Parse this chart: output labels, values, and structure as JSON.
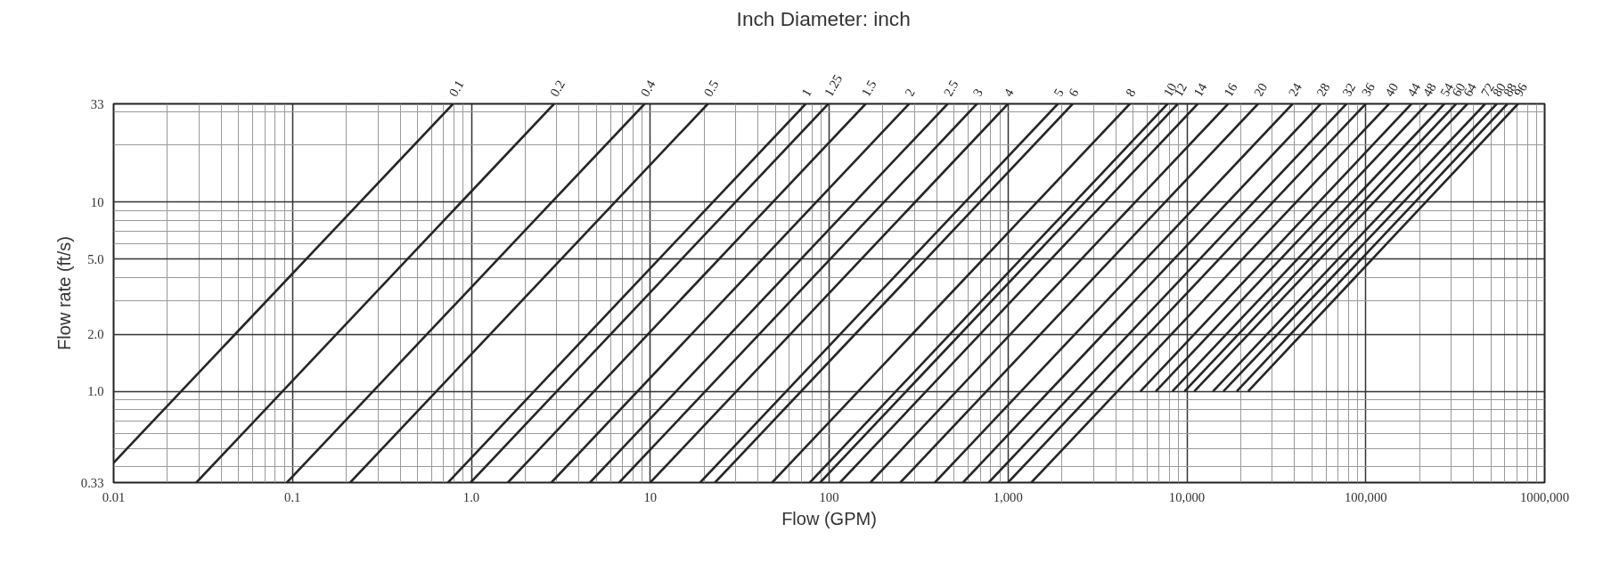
{
  "chart_data": {
    "type": "line",
    "title": "Inch   Diameter: inch",
    "xlabel": "Flow (GPM)",
    "ylabel": "Flow rate (ft/s)",
    "log": "xy",
    "grid": true,
    "xlim": [
      0.01,
      1000000
    ],
    "ylim": [
      0.33,
      33
    ],
    "xticks": [
      0.01,
      0.1,
      {
        "value": 1,
        "label": "1.0"
      },
      10,
      100,
      {
        "value": 1000,
        "label": "1,000"
      },
      {
        "value": 10000,
        "label": "10,000"
      },
      {
        "value": 100000,
        "label": "100,000"
      },
      {
        "value": 1000000,
        "label": "1000,000"
      }
    ],
    "yticks": [
      0.33,
      {
        "value": 1,
        "label": "1.0"
      },
      {
        "value": 2,
        "label": "2.0"
      },
      {
        "value": 5,
        "label": "5.0"
      },
      10,
      33
    ],
    "series": [
      {
        "name": "0.1",
        "color": "#262626",
        "x": [
          0.01,
          0.79
        ],
        "values": [
          0.42,
          33
        ]
      },
      {
        "name": "0.2",
        "color": "#262626",
        "x": [
          0.029,
          2.9
        ],
        "values": [
          0.33,
          33
        ]
      },
      {
        "name": "0.4",
        "color": "#262626",
        "x": [
          0.093,
          9.3
        ],
        "values": [
          0.33,
          33
        ]
      },
      {
        "name": "0.5",
        "color": "#262626",
        "x": [
          0.21,
          21
        ],
        "values": [
          0.33,
          33
        ]
      },
      {
        "name": "1",
        "color": "#262626",
        "x": [
          0.74,
          74
        ],
        "values": [
          0.33,
          33
        ]
      },
      {
        "name": "1.25",
        "color": "#262626",
        "x": [
          0.99,
          99
        ],
        "values": [
          0.33,
          33
        ]
      },
      {
        "name": "1.5",
        "color": "#262626",
        "x": [
          1.6,
          160
        ],
        "values": [
          0.33,
          33
        ]
      },
      {
        "name": "2",
        "color": "#262626",
        "x": [
          2.8,
          280
        ],
        "values": [
          0.33,
          33
        ]
      },
      {
        "name": "2.5",
        "color": "#262626",
        "x": [
          4.6,
          460
        ],
        "values": [
          0.33,
          33
        ]
      },
      {
        "name": "3",
        "color": "#262626",
        "x": [
          6.7,
          670
        ],
        "values": [
          0.33,
          33
        ]
      },
      {
        "name": "4",
        "color": "#262626",
        "x": [
          10,
          1000
        ],
        "values": [
          0.33,
          33
        ]
      },
      {
        "name": "5",
        "color": "#262626",
        "x": [
          19,
          1900
        ],
        "values": [
          0.33,
          33
        ]
      },
      {
        "name": "6",
        "color": "#262626",
        "x": [
          23,
          2300
        ],
        "values": [
          0.33,
          33
        ]
      },
      {
        "name": "8",
        "color": "#262626",
        "x": [
          48,
          4800
        ],
        "values": [
          0.33,
          33
        ]
      },
      {
        "name": "10",
        "color": "#262626",
        "x": [
          78,
          7800
        ],
        "values": [
          0.33,
          33
        ]
      },
      {
        "name": "12",
        "color": "#262626",
        "x": [
          89,
          8900
        ],
        "values": [
          0.33,
          33
        ]
      },
      {
        "name": "14",
        "color": "#262626",
        "x": [
          115,
          11500
        ],
        "values": [
          0.33,
          33
        ]
      },
      {
        "name": "16",
        "color": "#262626",
        "x": [
          170,
          17000
        ],
        "values": [
          0.33,
          33
        ]
      },
      {
        "name": "20",
        "color": "#262626",
        "x": [
          250,
          25000
        ],
        "values": [
          0.33,
          33
        ]
      },
      {
        "name": "24",
        "color": "#262626",
        "x": [
          390,
          39000
        ],
        "values": [
          0.33,
          33
        ]
      },
      {
        "name": "28",
        "color": "#262626",
        "x": [
          560,
          56000
        ],
        "values": [
          0.33,
          33
        ]
      },
      {
        "name": "32",
        "color": "#262626",
        "x": [
          780,
          78000
        ],
        "values": [
          0.33,
          33
        ]
      },
      {
        "name": "36",
        "color": "#262626",
        "x": [
          1000,
          100000
        ],
        "values": [
          0.33,
          33
        ]
      },
      {
        "name": "40",
        "color": "#262626",
        "x": [
          1350,
          135000
        ],
        "values": [
          0.33,
          33
        ]
      },
      {
        "name": "44",
        "color": "#262626",
        "x": [
          5500,
          180000
        ],
        "values": [
          1,
          33
        ]
      },
      {
        "name": "48",
        "color": "#262626",
        "x": [
          6700,
          220000
        ],
        "values": [
          1,
          33
        ]
      },
      {
        "name": "54",
        "color": "#262626",
        "x": [
          8300,
          275000
        ],
        "values": [
          1,
          33
        ]
      },
      {
        "name": "60",
        "color": "#262626",
        "x": [
          9700,
          320000
        ],
        "values": [
          1,
          33
        ]
      },
      {
        "name": "64",
        "color": "#262626",
        "x": [
          11000,
          370000
        ],
        "values": [
          1,
          33
        ]
      },
      {
        "name": "72",
        "color": "#262626",
        "x": [
          14000,
          465000
        ],
        "values": [
          1,
          33
        ]
      },
      {
        "name": "80",
        "color": "#262626",
        "x": [
          16000,
          540000
        ],
        "values": [
          1,
          33
        ]
      },
      {
        "name": "88",
        "color": "#262626",
        "x": [
          19000,
          620000
        ],
        "values": [
          1,
          33
        ]
      },
      {
        "name": "96",
        "color": "#262626",
        "x": [
          22000,
          710000
        ],
        "values": [
          1,
          33
        ]
      }
    ]
  }
}
